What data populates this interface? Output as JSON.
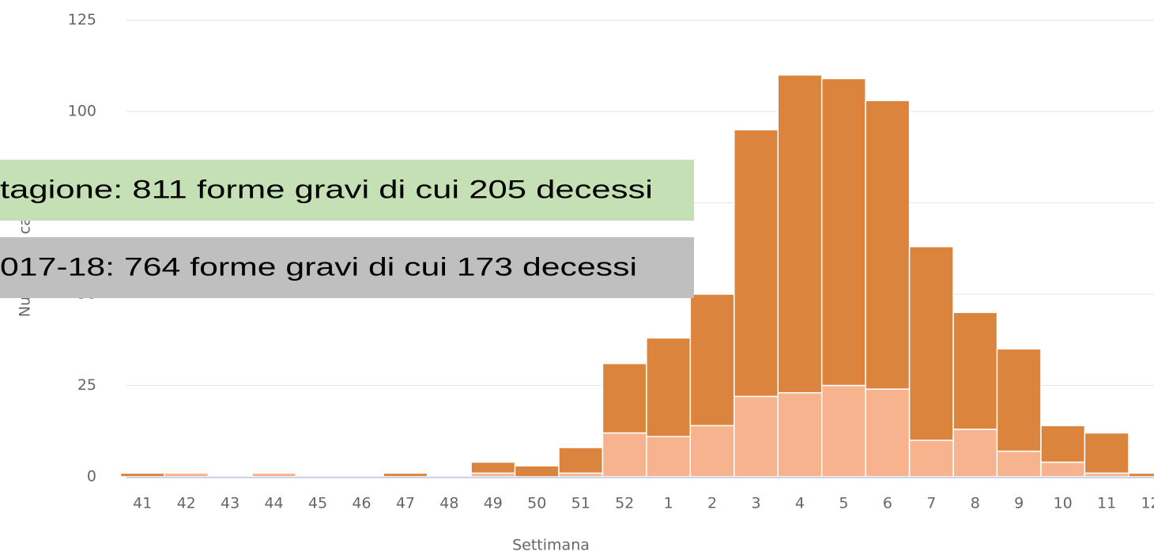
{
  "chart_data": {
    "type": "bar",
    "stacked": true,
    "xlabel": "Settimana",
    "ylabel": "Numero di casi",
    "annotations": [
      "tagione: 811 forme gravi di cui 205 decessi",
      "017-18: 764 forme gravi di cui 173 decessi"
    ],
    "categories": [
      "41",
      "42",
      "43",
      "44",
      "45",
      "46",
      "47",
      "48",
      "49",
      "50",
      "51",
      "52",
      "1",
      "2",
      "3",
      "4",
      "5",
      "6",
      "7",
      "8",
      "9",
      "10",
      "11",
      "12"
    ],
    "series": [
      {
        "color": "#f7b38d",
        "values": [
          0,
          1,
          0,
          1,
          0,
          0,
          0,
          0,
          1,
          0,
          1,
          12,
          11,
          14,
          22,
          23,
          25,
          24,
          10,
          13,
          7,
          4,
          1,
          0
        ]
      },
      {
        "color": "#db843d",
        "values": [
          1,
          0,
          0,
          0,
          0,
          0,
          1,
          0,
          3,
          3,
          7,
          19,
          27,
          36,
          73,
          87,
          84,
          79,
          53,
          32,
          28,
          10,
          11,
          1
        ]
      }
    ],
    "ylim": [
      0,
      125
    ],
    "yticks": [
      0,
      25,
      50,
      75,
      100,
      125
    ],
    "grid": true
  }
}
